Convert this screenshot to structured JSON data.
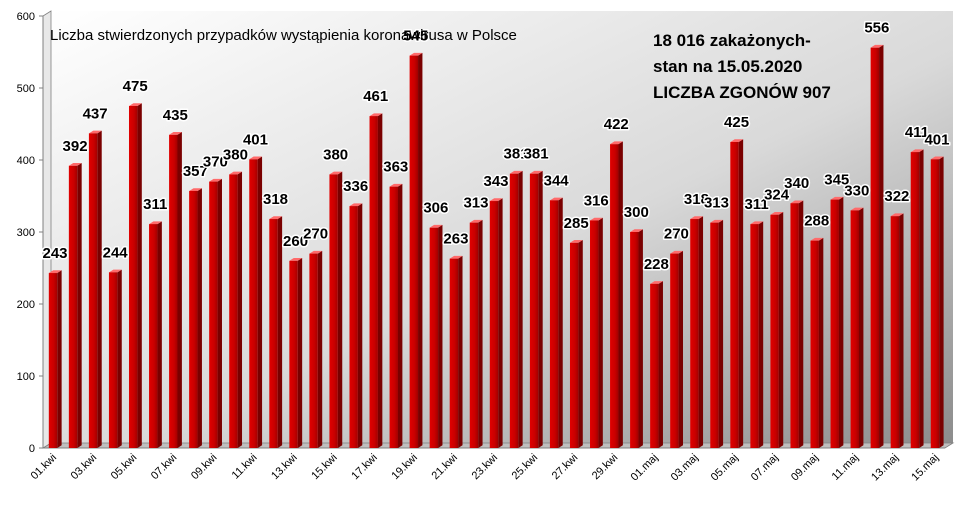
{
  "chart_data": {
    "type": "bar",
    "title": "Liczba stwierdzonych przypadków wystąpienia koronawirusa w Polsce",
    "xlabel": "",
    "ylabel": "",
    "ylim": [
      0,
      600
    ],
    "yticks": [
      0,
      100,
      200,
      300,
      400,
      500,
      600
    ],
    "grid": false,
    "legend": "none",
    "categories": [
      "01.kwi",
      "02.kwi",
      "03.kwi",
      "04.kwi",
      "05.kwi",
      "06.kwi",
      "07.kwi",
      "08.kwi",
      "09.kwi",
      "10.kwi",
      "11.kwi",
      "12.kwi",
      "13.kwi",
      "14.kwi",
      "15.kwi",
      "16.kwi",
      "17.kwi",
      "18.kwi",
      "19.kwi",
      "20.kwi",
      "21.kwi",
      "22.kwi",
      "23.kwi",
      "24.kwi",
      "25.kwi",
      "26.kwi",
      "27.kwi",
      "28.kwi",
      "29.kwi",
      "30.kwi",
      "01.maj",
      "02.maj",
      "03.maj",
      "04.maj",
      "05.maj",
      "06.maj",
      "07.maj",
      "08.maj",
      "09.maj",
      "10.maj",
      "11.maj",
      "12.maj",
      "13.maj",
      "14.maj",
      "15.maj"
    ],
    "category_labels_shown": [
      "01.kwi",
      "03.kwi",
      "05.kwi",
      "07.kwi",
      "09.kwi",
      "11.kwi",
      "13.kwi",
      "15.kwi",
      "17.kwi",
      "19.kwi",
      "21.kwi",
      "23.kwi",
      "25.kwi",
      "27.kwi",
      "29.kwi",
      "01.maj",
      "03.maj",
      "05.maj",
      "07.maj",
      "09.maj",
      "11.maj",
      "13.maj",
      "15.maj"
    ],
    "values": [
      243,
      392,
      437,
      244,
      475,
      311,
      435,
      357,
      370,
      380,
      401,
      318,
      260,
      270,
      380,
      336,
      461,
      363,
      545,
      306,
      263,
      313,
      343,
      381,
      381,
      344,
      285,
      316,
      422,
      300,
      228,
      270,
      318,
      313,
      425,
      311,
      324,
      340,
      288,
      345,
      330,
      556,
      322,
      411,
      401
    ],
    "annotations": [
      "18 016 zakażonych-",
      "stan na 15.05.2020",
      "LICZBA ZGONÓW  907"
    ],
    "colors": {
      "bar": "#d40000",
      "bar_side": "#7a0000",
      "bar_top": "#ff6a6a",
      "label_halo": "#ffffff"
    }
  }
}
